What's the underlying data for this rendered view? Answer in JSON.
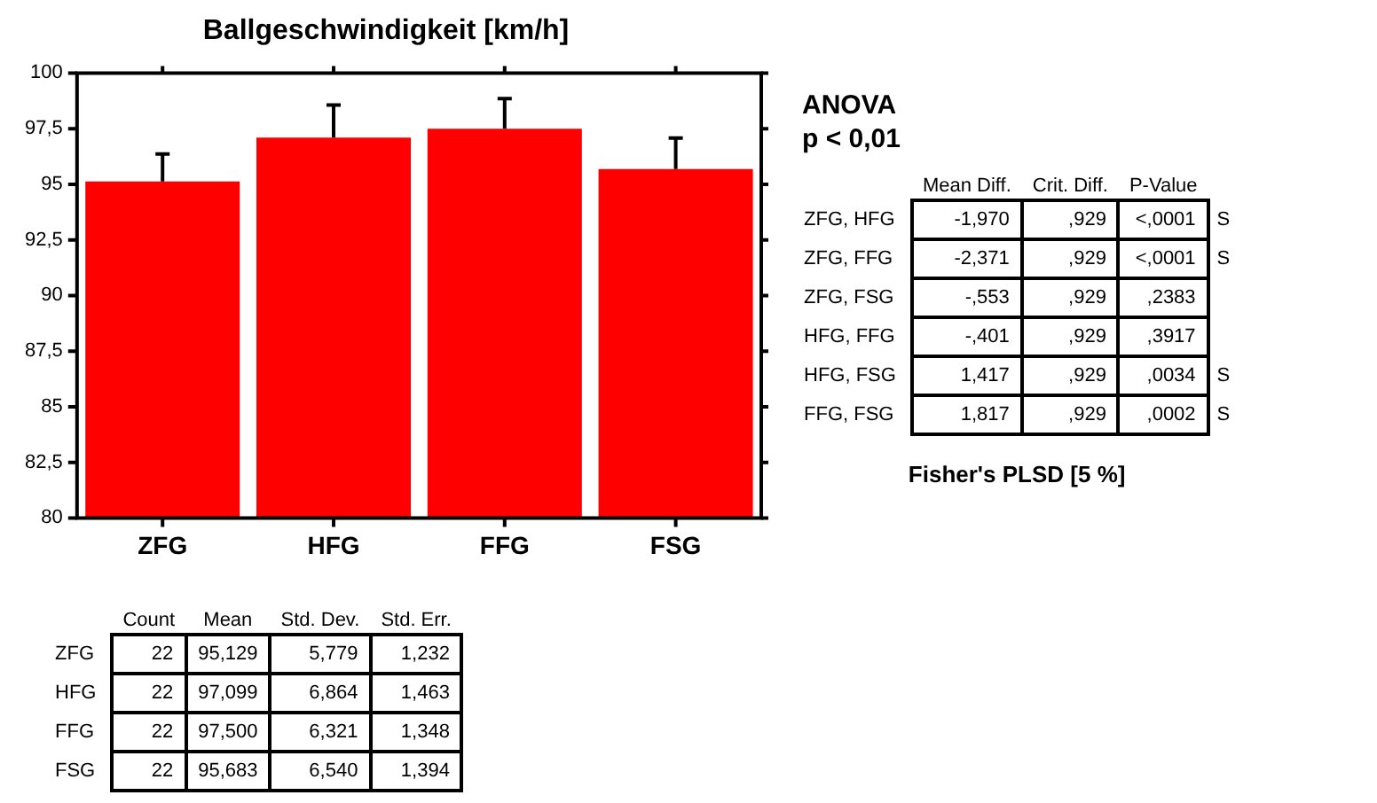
{
  "chart_data": [
    {
      "type": "bar",
      "title": "Ballgeschwindigkeit [km/h]",
      "categories": [
        "ZFG",
        "HFG",
        "FFG",
        "FSG"
      ],
      "values": [
        95.129,
        97.099,
        97.5,
        95.683
      ],
      "color": "#ff0000",
      "errors": [
        [
          95.129,
          96.361
        ],
        [
          97.099,
          98.562
        ],
        [
          97.5,
          98.848
        ],
        [
          95.683,
          97.077
        ]
      ],
      "ylim": [
        80,
        100
      ],
      "yticks": [
        80,
        {
          "value": 82.5,
          "label": "82,5"
        },
        85,
        {
          "value": 87.5,
          "label": "87,5"
        },
        90,
        {
          "value": 92.5,
          "label": "92,5"
        },
        95,
        {
          "value": 97.5,
          "label": "97,5"
        },
        100
      ],
      "grid": false,
      "legend": false
    },
    {
      "type": "heatmap",
      "title": "ANOVA",
      "subtitle": "p < 0,01",
      "annotations": [
        "Fisher's PLSD [5 %]"
      ],
      "categories": [
        "Mean Diff.",
        "Crit. Diff.",
        "P-Value",
        null
      ],
      "y_categories": [
        "ZFG, HFG",
        "ZFG, FFG",
        "ZFG, FSG",
        "HFG, FFG",
        "HFG, FSG",
        "FFG, FSG"
      ],
      "cells": [
        [
          null,
          null,
          null,
          null
        ],
        [
          null,
          null,
          null,
          null
        ],
        [
          null,
          null,
          null,
          null
        ],
        [
          null,
          null,
          null,
          null
        ],
        [
          null,
          null,
          null,
          null
        ],
        [
          null,
          null,
          null,
          null
        ]
      ],
      "cell_labels": [
        [
          "-1,970",
          ",929",
          "<,0001",
          "S"
        ],
        [
          "-2,371",
          ",929",
          "<,0001",
          "S"
        ],
        [
          "-,553",
          ",929",
          ",2383",
          null
        ],
        [
          "-,401",
          ",929",
          ",3917",
          null
        ],
        [
          "1,417",
          ",929",
          ",0034",
          "S"
        ],
        [
          "1,817",
          ",929",
          ",0002",
          "S"
        ]
      ]
    },
    {
      "type": "heatmap",
      "categories": [
        "Count",
        "Mean",
        "Std. Dev.",
        "Std. Err."
      ],
      "y_categories": [
        "ZFG",
        "HFG",
        "FFG",
        "FSG"
      ],
      "cells": [
        [
          null,
          null,
          null,
          null
        ],
        [
          null,
          null,
          null,
          null
        ],
        [
          null,
          null,
          null,
          null
        ],
        [
          null,
          null,
          null,
          null
        ]
      ],
      "cell_labels": [
        [
          "22",
          "95,129",
          "5,779",
          "1,232"
        ],
        [
          "22",
          "97,099",
          "6,864",
          "1,463"
        ],
        [
          "22",
          "97,500",
          "6,321",
          "1,348"
        ],
        [
          "22",
          "95,683",
          "6,540",
          "1,394"
        ]
      ]
    }
  ]
}
